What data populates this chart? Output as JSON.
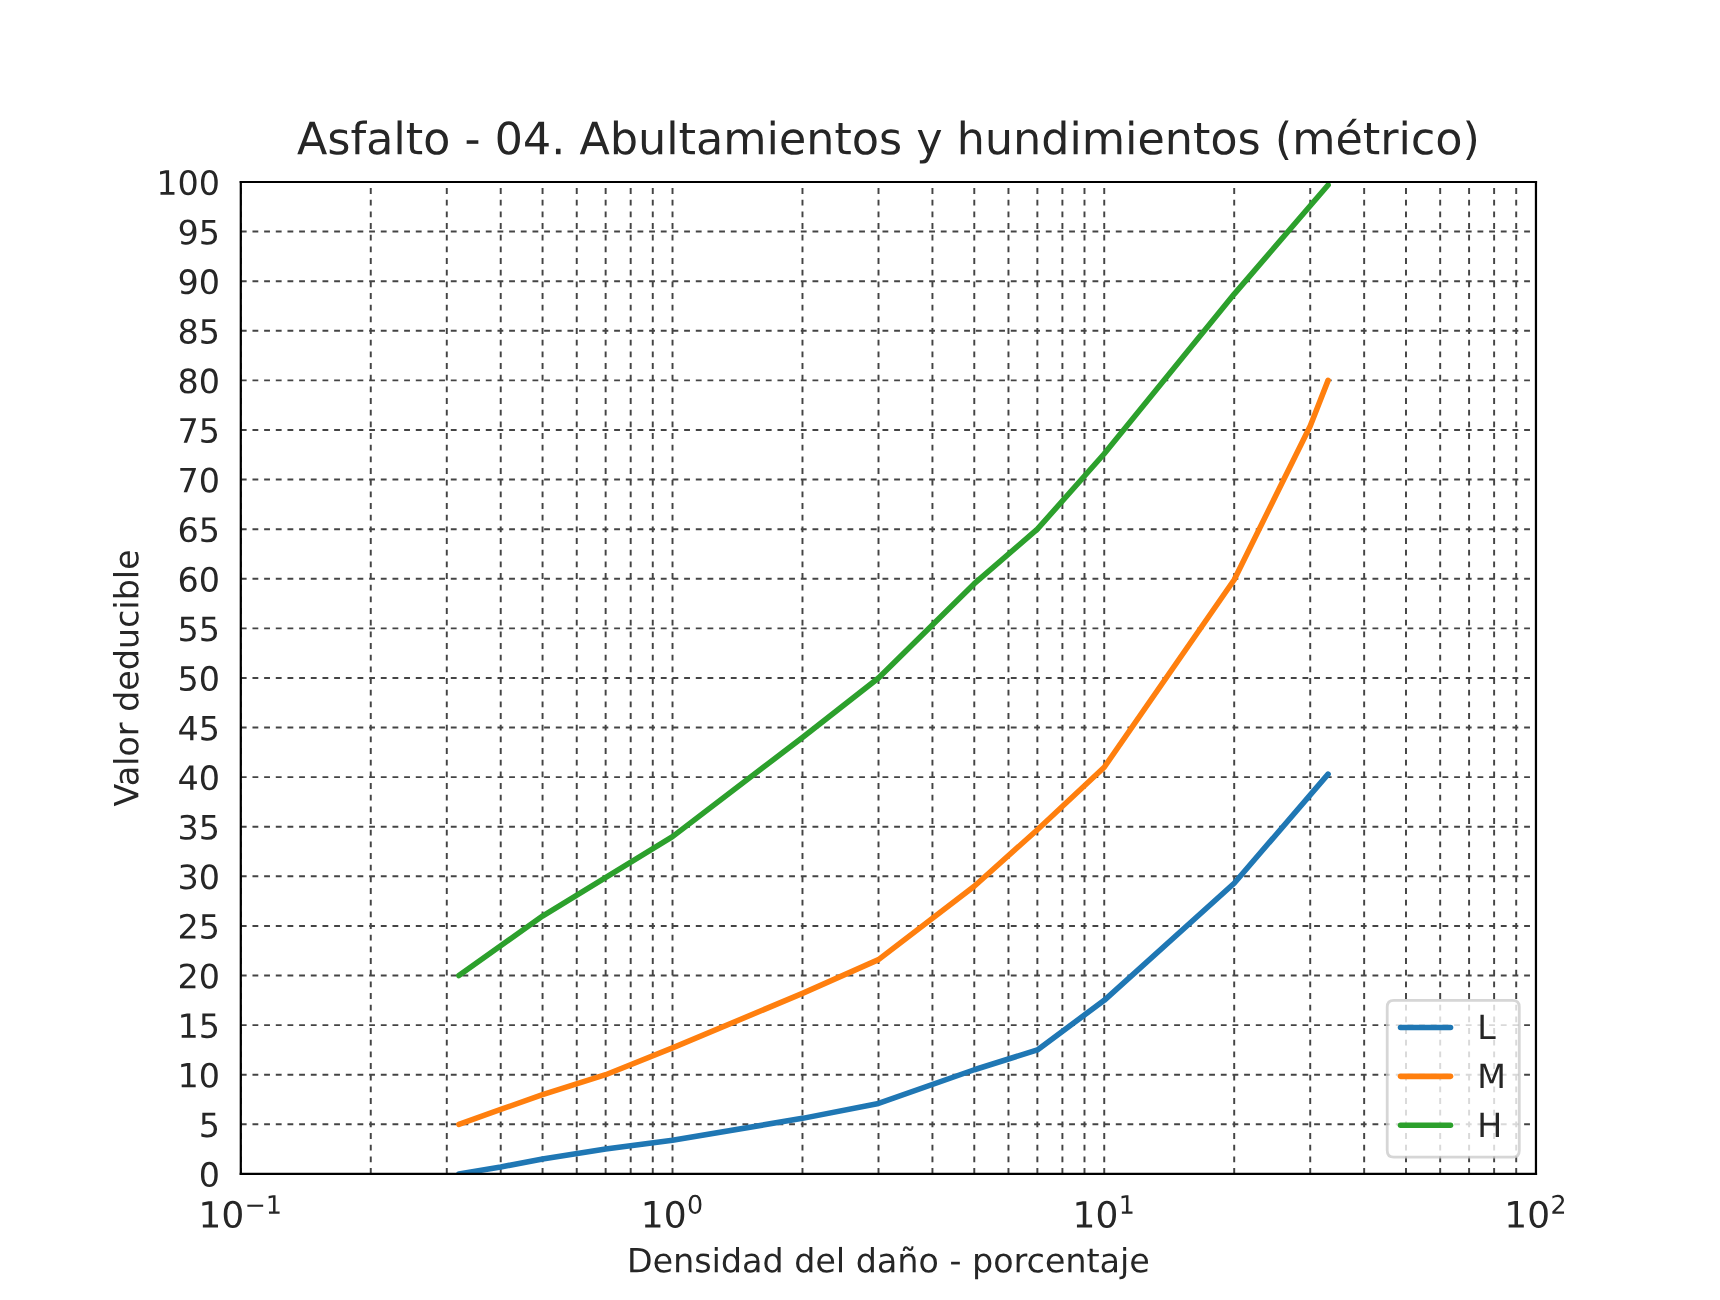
{
  "chart_data": {
    "type": "line",
    "title": "Asfalto - 04. Abultamientos y hundimientos (métrico)",
    "xlabel": "Densidad del daño - porcentaje",
    "ylabel": "Valor deducible",
    "log": "x",
    "xlim": [
      0.1,
      100
    ],
    "xticks": [
      {
        "value": 0.1,
        "label": "10$^{−1}$"
      },
      {
        "value": 1,
        "label": "10$^{0}$"
      },
      {
        "value": 10,
        "label": "10$^{1}$"
      },
      {
        "value": 100,
        "label": "10$^{2}$"
      }
    ],
    "ylim": [
      0,
      100
    ],
    "yticks": [
      0,
      5,
      10,
      15,
      20,
      25,
      30,
      35,
      40,
      45,
      50,
      55,
      60,
      65,
      70,
      75,
      80,
      85,
      90,
      95,
      100
    ],
    "grid": true,
    "legend": "bottom right",
    "line_style": "solid",
    "series": [
      {
        "name": "L",
        "color": "#1f77b4",
        "x": [
          0.32,
          0.4,
          0.5,
          0.7,
          1,
          2,
          3,
          5,
          7,
          10,
          20,
          33
        ],
        "values": [
          0,
          0.7,
          1.5,
          2.5,
          3.4,
          5.6,
          7.1,
          10.5,
          12.5,
          17.5,
          29.3,
          40.3
        ]
      },
      {
        "name": "M",
        "color": "#ff7f0e",
        "x": [
          0.32,
          0.4,
          0.5,
          0.7,
          1,
          2,
          3,
          5,
          7,
          10,
          20,
          30,
          33
        ],
        "values": [
          5,
          6.5,
          8,
          10,
          12.7,
          18.2,
          21.6,
          29,
          34.7,
          41,
          59.9,
          75.4,
          80
        ]
      },
      {
        "name": "H",
        "color": "#2ca02c",
        "x": [
          0.32,
          0.5,
          1,
          2,
          3,
          5,
          7,
          10,
          20,
          30,
          33
        ],
        "values": [
          20,
          26,
          34,
          44,
          50,
          59.5,
          65,
          72.6,
          88.7,
          97.6,
          99.7
        ]
      }
    ]
  }
}
